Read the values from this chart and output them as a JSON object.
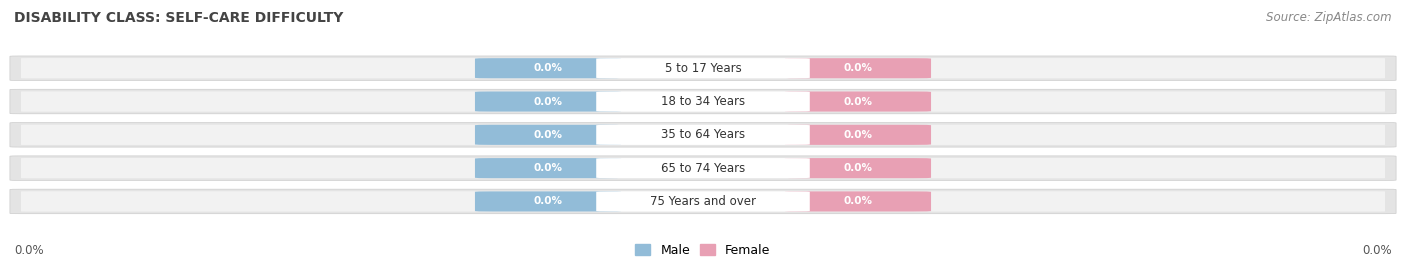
{
  "title": "DISABILITY CLASS: SELF-CARE DIFFICULTY",
  "source": "Source: ZipAtlas.com",
  "categories": [
    "5 to 17 Years",
    "18 to 34 Years",
    "35 to 64 Years",
    "65 to 74 Years",
    "75 Years and over"
  ],
  "male_values": [
    "0.0%",
    "0.0%",
    "0.0%",
    "0.0%",
    "0.0%"
  ],
  "female_values": [
    "0.0%",
    "0.0%",
    "0.0%",
    "0.0%",
    "0.0%"
  ],
  "male_color": "#92bcd8",
  "female_color": "#e8a0b4",
  "bar_bg_color": "#e4e4e4",
  "bar_inner_bg": "#f2f2f2",
  "left_label": "0.0%",
  "right_label": "0.0%",
  "title_fontsize": 10,
  "source_fontsize": 8.5,
  "label_fontsize": 8.5,
  "background_color": "#ffffff",
  "bar_height": 0.72,
  "n_rows": 5
}
